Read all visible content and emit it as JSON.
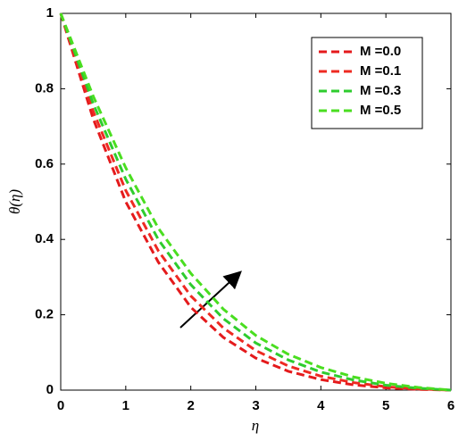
{
  "chart_data": {
    "type": "line",
    "xlabel": "η",
    "ylabel": "θ(η)",
    "x": [
      0,
      0.5,
      1,
      1.5,
      2,
      2.5,
      3,
      3.5,
      4,
      4.5,
      5,
      5.5,
      6
    ],
    "series": [
      {
        "name": "M =0.0",
        "color": "#e41a1c",
        "values": [
          1,
          0.72,
          0.5,
          0.34,
          0.22,
          0.14,
          0.085,
          0.05,
          0.028,
          0.014,
          0.006,
          0.002,
          0
        ]
      },
      {
        "name": "M =0.1",
        "color": "#ee2a22",
        "values": [
          1,
          0.74,
          0.53,
          0.37,
          0.25,
          0.165,
          0.105,
          0.064,
          0.037,
          0.02,
          0.009,
          0.003,
          0
        ]
      },
      {
        "name": "M =0.3",
        "color": "#2ecc2e",
        "values": [
          1,
          0.76,
          0.56,
          0.4,
          0.28,
          0.19,
          0.125,
          0.08,
          0.048,
          0.027,
          0.013,
          0.005,
          0
        ]
      },
      {
        "name": "M =0.5",
        "color": "#4ade20",
        "values": [
          1,
          0.78,
          0.59,
          0.43,
          0.31,
          0.215,
          0.145,
          0.095,
          0.06,
          0.035,
          0.018,
          0.007,
          0
        ]
      }
    ],
    "xlim": [
      0,
      6
    ],
    "xticks": [
      0,
      1,
      2,
      3,
      4,
      5,
      6
    ],
    "ylim": [
      0,
      1
    ],
    "yticks": [
      0,
      0.2,
      0.4,
      0.6,
      0.8,
      1
    ],
    "legend": "upper right"
  }
}
